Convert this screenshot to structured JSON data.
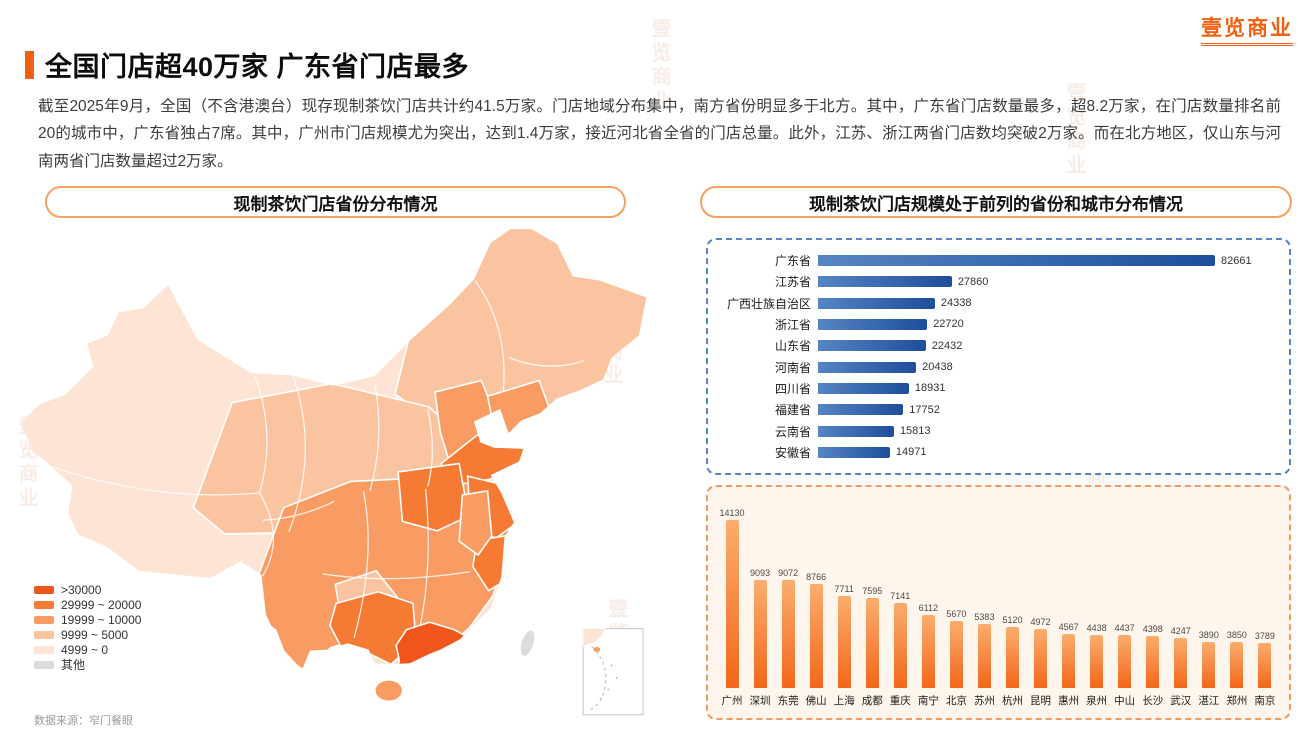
{
  "page": {
    "logo": "壹览商业",
    "watermark": "壹览商业",
    "title": "全国门店超40万家 广东省门店最多",
    "body": "截至2025年9月，全国（不含港澳台）现存现制茶饮门店共计约41.5万家。门店地域分布集中，南方省份明显多于北方。其中，广东省门店数量最多，超8.2万家，在门店数量排名前20的城市中，广东省独占7席。其中，广州市门店规模尤为突出，达到1.4万家，接近河北省全省的门店总量。此外，江苏、浙江两省门店数均突破2万家。而在北方地区，仅山东与河南两省门店数量超过2万家。",
    "source": "数据来源：窄门餐眼"
  },
  "theme": {
    "accent": "#F26011",
    "pill_border": "#F5A163",
    "blue_box_border": "#5585C3",
    "blue_bar_from": "#5585C3",
    "blue_bar_to": "#1E4E9C",
    "orange_box_border": "#F19A64",
    "orange_box_bg": "#FEF5EC",
    "orange_bar_top": "#FBAD6E",
    "orange_bar_bottom": "#F2671A"
  },
  "map_panel": {
    "title": "现制茶饮门店省份分布情况",
    "legend": [
      {
        "label": ">30000",
        "color": "#F0561B"
      },
      {
        "label": "29999 ~ 20000",
        "color": "#F57A33"
      },
      {
        "label": "19999 ~ 10000",
        "color": "#F89C63"
      },
      {
        "label": "9999 ~ 5000",
        "color": "#FBC4A0"
      },
      {
        "label": "4999 ~ 0",
        "color": "#FDE4D4"
      },
      {
        "label": "其他",
        "color": "#DCDCDC"
      }
    ]
  },
  "charts_panel": {
    "title": "现制茶饮门店规模处于前列的省份和城市分布情况"
  },
  "chart_data": [
    {
      "type": "bar",
      "orientation": "horizontal",
      "categories": [
        "广东省",
        "江苏省",
        "广西壮族自治区",
        "浙江省",
        "山东省",
        "河南省",
        "四川省",
        "福建省",
        "云南省",
        "安徽省"
      ],
      "values": [
        82661,
        27860,
        24338,
        22720,
        22432,
        20438,
        18931,
        17752,
        15813,
        14971
      ],
      "grid": false,
      "value_labels": true,
      "bar_color": "#2A5BA8"
    },
    {
      "type": "bar",
      "orientation": "vertical",
      "categories": [
        "广州",
        "深圳",
        "东莞",
        "佛山",
        "上海",
        "成都",
        "重庆",
        "南宁",
        "北京",
        "苏州",
        "杭州",
        "昆明",
        "惠州",
        "泉州",
        "中山",
        "长沙",
        "武汉",
        "湛江",
        "郑州",
        "南京"
      ],
      "values": [
        14130,
        9093,
        9072,
        8766,
        7711,
        7595,
        7141,
        6112,
        5670,
        5383,
        5120,
        4972,
        4567,
        4438,
        4437,
        4398,
        4247,
        3890,
        3850,
        3789
      ],
      "grid": false,
      "value_labels": true,
      "bar_color": "#F4781F"
    }
  ]
}
